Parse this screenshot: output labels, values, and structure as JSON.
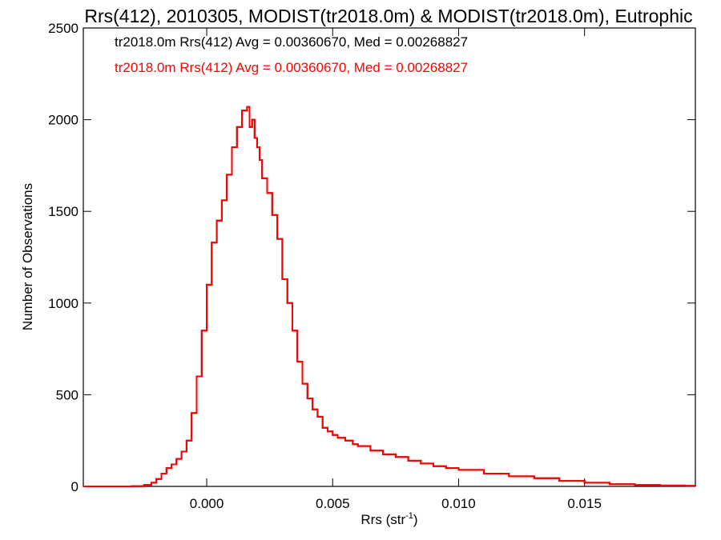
{
  "chart_data": {
    "type": "line",
    "title": "Rrs(412), 2010305, MODIST(tr2018.0m) & MODIST(tr2018.0m), Eutrophic",
    "xlabel": "Rrs (str",
    "xlabel_superscript": "-1",
    "xlabel_suffix": ")",
    "ylabel": "Number of Observations",
    "xlim": [
      -0.0049,
      0.0194
    ],
    "ylim": [
      0,
      2500
    ],
    "xticks": [
      0.0,
      0.005,
      0.01,
      0.015
    ],
    "xtick_labels": [
      "0.000",
      "0.005",
      "0.010",
      "0.015"
    ],
    "yticks": [
      0,
      500,
      1000,
      1500,
      2000,
      2500
    ],
    "ytick_labels": [
      "0",
      "500",
      "1000",
      "1500",
      "2000",
      "2500"
    ],
    "grid": false,
    "annotations": [
      {
        "text": "tr2018.0m Rrs(412) Avg = 0.00360670, Med = 0.00268827",
        "color": "#000000"
      },
      {
        "text": "tr2018.0m Rrs(412) Avg = 0.00360670, Med = 0.00268827",
        "color": "#ff0000"
      }
    ],
    "series": [
      {
        "color": "#000000",
        "x": [
          -0.0049,
          -0.004,
          -0.003,
          -0.0025,
          -0.0022,
          -0.002,
          -0.0018,
          -0.0016,
          -0.0014,
          -0.0012,
          -0.001,
          -0.0008,
          -0.0006,
          -0.0004,
          -0.0002,
          0.0,
          0.0002,
          0.0004,
          0.0006,
          0.0008,
          0.001,
          0.0012,
          0.0014,
          0.0016,
          0.0017,
          0.0018,
          0.0019,
          0.002,
          0.0021,
          0.0022,
          0.0024,
          0.0026,
          0.0028,
          0.003,
          0.0032,
          0.0034,
          0.0036,
          0.0038,
          0.004,
          0.0042,
          0.0044,
          0.0046,
          0.0048,
          0.005,
          0.0052,
          0.0055,
          0.0058,
          0.006,
          0.0065,
          0.007,
          0.0075,
          0.008,
          0.0085,
          0.009,
          0.0095,
          0.01,
          0.011,
          0.012,
          0.013,
          0.014,
          0.015,
          0.016,
          0.017,
          0.018,
          0.019,
          0.0194
        ],
        "values": [
          0,
          0,
          1,
          8,
          20,
          40,
          70,
          100,
          120,
          150,
          190,
          250,
          400,
          600,
          850,
          1100,
          1330,
          1450,
          1560,
          1700,
          1850,
          1960,
          2050,
          2070,
          1960,
          2000,
          1900,
          1850,
          1780,
          1680,
          1600,
          1480,
          1350,
          1130,
          1000,
          850,
          680,
          560,
          480,
          420,
          380,
          320,
          300,
          280,
          265,
          250,
          230,
          220,
          195,
          175,
          160,
          140,
          125,
          110,
          100,
          90,
          70,
          55,
          45,
          30,
          20,
          12,
          8,
          5,
          3,
          2
        ]
      },
      {
        "color": "#ff0000",
        "x": [
          -0.0049,
          -0.004,
          -0.003,
          -0.0025,
          -0.0022,
          -0.002,
          -0.0018,
          -0.0016,
          -0.0014,
          -0.0012,
          -0.001,
          -0.0008,
          -0.0006,
          -0.0004,
          -0.0002,
          0.0,
          0.0002,
          0.0004,
          0.0006,
          0.0008,
          0.001,
          0.0012,
          0.0014,
          0.0016,
          0.0017,
          0.0018,
          0.0019,
          0.002,
          0.0021,
          0.0022,
          0.0024,
          0.0026,
          0.0028,
          0.003,
          0.0032,
          0.0034,
          0.0036,
          0.0038,
          0.004,
          0.0042,
          0.0044,
          0.0046,
          0.0048,
          0.005,
          0.0052,
          0.0055,
          0.0058,
          0.006,
          0.0065,
          0.007,
          0.0075,
          0.008,
          0.0085,
          0.009,
          0.0095,
          0.01,
          0.011,
          0.012,
          0.013,
          0.014,
          0.015,
          0.016,
          0.017,
          0.018,
          0.019,
          0.0194
        ],
        "values": [
          0,
          0,
          1,
          8,
          20,
          40,
          70,
          100,
          120,
          150,
          190,
          250,
          400,
          600,
          850,
          1100,
          1330,
          1450,
          1560,
          1700,
          1850,
          1960,
          2050,
          2070,
          1960,
          2000,
          1900,
          1850,
          1780,
          1680,
          1600,
          1480,
          1350,
          1130,
          1000,
          850,
          680,
          560,
          480,
          420,
          380,
          320,
          300,
          280,
          265,
          250,
          230,
          220,
          195,
          175,
          160,
          140,
          125,
          110,
          100,
          90,
          70,
          55,
          45,
          30,
          20,
          12,
          8,
          5,
          3,
          2
        ]
      }
    ]
  }
}
